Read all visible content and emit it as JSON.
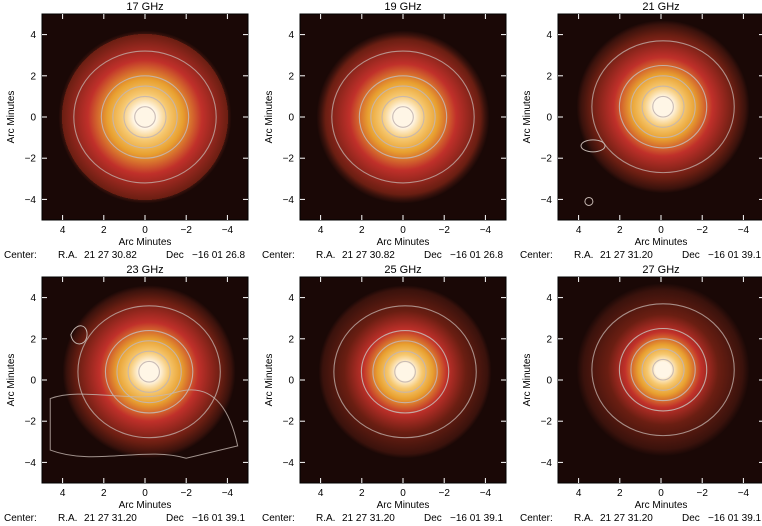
{
  "figure": {
    "panels": [
      {
        "title": "17 GHz",
        "xlabel": "Arc Minutes",
        "ylabel": "Arc Minutes",
        "x_ticks": [
          "4",
          "2",
          "0",
          "−2",
          "−4"
        ],
        "y_ticks": [
          "4",
          "2",
          "0",
          "−2",
          "−4"
        ],
        "center": {
          "prefix": "Center:",
          "ra_label": "R.A.",
          "ra": "21 27 30.82",
          "dec_label": "Dec",
          "dec": "−16 01 26.8"
        },
        "source_offset_arcmin": [
          0.0,
          0.0
        ],
        "core_size": 0.3
      },
      {
        "title": "19 GHz",
        "xlabel": "Arc Minutes",
        "ylabel": "Arc Minutes",
        "x_ticks": [
          "4",
          "2",
          "0",
          "−2",
          "−4"
        ],
        "y_ticks": [
          "4",
          "2",
          "0",
          "−2",
          "−4"
        ],
        "center": {
          "prefix": "Center:",
          "ra_label": "R.A.",
          "ra": "21 27 30.82",
          "dec_label": "Dec",
          "dec": "−16 01 26.8"
        },
        "source_offset_arcmin": [
          0.0,
          0.0
        ],
        "core_size": 0.28
      },
      {
        "title": "21 GHz",
        "xlabel": "Arc Minutes",
        "ylabel": "Arc Minutes",
        "x_ticks": [
          "4",
          "2",
          "0",
          "−2",
          "−4"
        ],
        "y_ticks": [
          "4",
          "2",
          "0",
          "−2",
          "−4"
        ],
        "center": {
          "prefix": "Center:",
          "ra_label": "R.A.",
          "ra": "21 27 31.20",
          "dec_label": "Dec",
          "dec": "−16 01 39.1"
        },
        "source_offset_arcmin": [
          -0.1,
          0.5
        ],
        "core_size": 0.26
      },
      {
        "title": "23 GHz",
        "xlabel": "Arc Minutes",
        "ylabel": "Arc Minutes",
        "x_ticks": [
          "4",
          "2",
          "0",
          "−2",
          "−4"
        ],
        "y_ticks": [
          "4",
          "2",
          "0",
          "−2",
          "−4"
        ],
        "center": {
          "prefix": "Center:",
          "ra_label": "R.A.",
          "ra": "21 27 31.20",
          "dec_label": "Dec",
          "dec": "−16 01 39.1"
        },
        "source_offset_arcmin": [
          -0.2,
          0.4
        ],
        "core_size": 0.26
      },
      {
        "title": "25 GHz",
        "xlabel": "Arc Minutes",
        "ylabel": "Arc Minutes",
        "x_ticks": [
          "4",
          "2",
          "0",
          "−2",
          "−4"
        ],
        "y_ticks": [
          "4",
          "2",
          "0",
          "−2",
          "−4"
        ],
        "center": {
          "prefix": "Center:",
          "ra_label": "R.A.",
          "ra": "21 27 31.20",
          "dec_label": "Dec",
          "dec": "−16 01 39.1"
        },
        "source_offset_arcmin": [
          -0.1,
          0.4
        ],
        "core_size": 0.22
      },
      {
        "title": "27 GHz",
        "xlabel": "Arc Minutes",
        "ylabel": "Arc Minutes",
        "x_ticks": [
          "4",
          "2",
          "0",
          "−2",
          "−4"
        ],
        "y_ticks": [
          "4",
          "2",
          "0",
          "−2",
          "−4"
        ],
        "center": {
          "prefix": "Center:",
          "ra_label": "R.A.",
          "ra": "21 27 31.20",
          "dec_label": "Dec",
          "dec": "−16 01 39.1"
        },
        "source_offset_arcmin": [
          -0.1,
          0.5
        ],
        "core_size": 0.2
      }
    ],
    "colors": {
      "background": "#1a0806",
      "ring_outer": "#6a1e12",
      "ring_mid": "#c0302a",
      "ring_inner": "#e8a030",
      "core": "#fff6e6",
      "contour": "#c4b6b0"
    }
  }
}
